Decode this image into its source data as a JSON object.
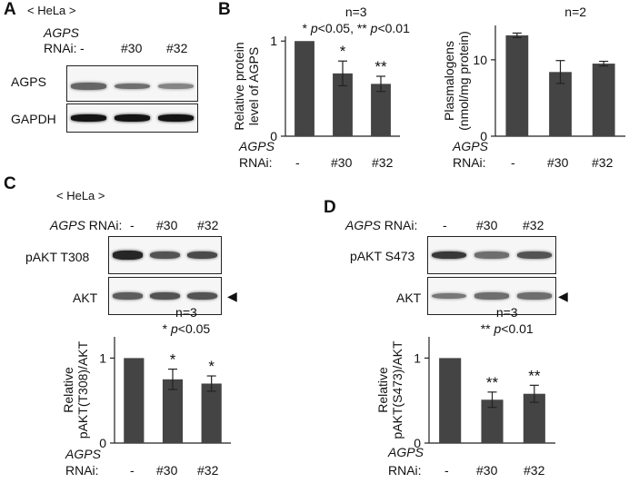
{
  "panels": {
    "A": {
      "letter": "A",
      "cell_line": "< HeLa >",
      "rnai_gene": "AGPS",
      "rnai_word": "RNAi:",
      "lanes": [
        "-",
        "#30",
        "#32"
      ],
      "blots": [
        {
          "label": "AGPS",
          "intensity": [
            0.55,
            0.5,
            0.38
          ]
        },
        {
          "label": "GAPDH",
          "intensity": [
            1.0,
            1.0,
            1.0
          ]
        }
      ]
    },
    "B": {
      "letter": "B",
      "rnai_gene": "AGPS",
      "rnai_word": "RNAi:",
      "lanes": [
        "-",
        "#30",
        "#32"
      ]
    },
    "C": {
      "letter": "C",
      "cell_line": "< HeLa >",
      "rnai_gene": "AGPS",
      "rnai_word": "RNAi:",
      "lanes": [
        "-",
        "#30",
        "#32"
      ],
      "blots": [
        {
          "label": "pAKT T308",
          "intensity": [
            0.9,
            0.65,
            0.7
          ]
        },
        {
          "label": "AKT",
          "intensity": [
            0.6,
            0.65,
            0.65
          ]
        }
      ],
      "arrow": "◀"
    },
    "D": {
      "letter": "D",
      "rnai_gene": "AGPS",
      "rnai_word": "RNAi:",
      "lanes": [
        "-",
        "#30",
        "#32"
      ],
      "blots": [
        {
          "label": "pAKT S473",
          "intensity": [
            0.8,
            0.5,
            0.65
          ]
        },
        {
          "label": "AKT",
          "intensity": [
            0.45,
            0.5,
            0.5
          ]
        }
      ],
      "arrow": "◀"
    }
  },
  "chart_data": [
    {
      "id": "B-protein",
      "type": "bar",
      "categories": [
        "-",
        "#30",
        "#32"
      ],
      "values": [
        1.0,
        0.66,
        0.55
      ],
      "errors": [
        0,
        0.13,
        0.08
      ],
      "ylabel_lines": [
        "Relative protein",
        "level of AGPS"
      ],
      "ylim": [
        0,
        1.05
      ],
      "yticks": [
        0,
        1
      ],
      "annotations": [
        "n=3",
        "* p<0.05, ** p<0.01"
      ],
      "significance": [
        "",
        "*",
        "**"
      ],
      "bar_color": "#444444"
    },
    {
      "id": "B-plasmalogen",
      "type": "bar",
      "categories": [
        "-",
        "#30",
        "#32"
      ],
      "values": [
        13.2,
        8.4,
        9.5
      ],
      "errors": [
        0.3,
        1.5,
        0.3
      ],
      "ylabel_lines": [
        "Plasmalogens",
        "(nmol/mg protein)"
      ],
      "ylim": [
        0,
        14.5
      ],
      "yticks": [
        0,
        10
      ],
      "annotations": [
        "n=2"
      ],
      "significance": [
        "",
        "",
        ""
      ],
      "bar_color": "#444444"
    },
    {
      "id": "C-pAKT-T308",
      "type": "bar",
      "categories": [
        "-",
        "#30",
        "#32"
      ],
      "values": [
        1.0,
        0.75,
        0.7
      ],
      "errors": [
        0,
        0.12,
        0.09
      ],
      "ylabel_lines": [
        "Relative",
        "pAKT(T308)/AKT"
      ],
      "ylim": [
        0,
        1.25
      ],
      "yticks": [
        0,
        1
      ],
      "annotations": [
        "n=3",
        "* p<0.05"
      ],
      "significance": [
        "",
        "*",
        "*"
      ],
      "bar_color": "#444444"
    },
    {
      "id": "D-pAKT-S473",
      "type": "bar",
      "categories": [
        "-",
        "#30",
        "#32"
      ],
      "values": [
        1.0,
        0.51,
        0.58
      ],
      "errors": [
        0,
        0.09,
        0.1
      ],
      "ylabel_lines": [
        "Relative",
        "pAKT(S473)/AKT"
      ],
      "ylim": [
        0,
        1.25
      ],
      "yticks": [
        0,
        1
      ],
      "annotations": [
        "n=3",
        "** p<0.01"
      ],
      "significance": [
        "",
        "**",
        "**"
      ],
      "bar_color": "#444444"
    }
  ]
}
